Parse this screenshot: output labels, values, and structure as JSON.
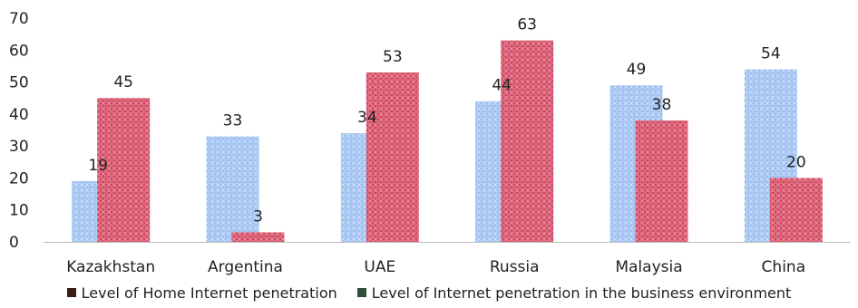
{
  "chart_data": {
    "type": "bar",
    "categories": [
      "Kazakhstan",
      "Argentina",
      "UAE",
      "Russia",
      "Malaysia",
      "China"
    ],
    "series": [
      {
        "name": "Level of Internet penetration in the business environment",
        "values": [
          19,
          33,
          34,
          44,
          49,
          54
        ],
        "color": "#8fb4ea"
      },
      {
        "name": "Level of Home Internet penetration",
        "values": [
          45,
          3,
          53,
          63,
          38,
          20
        ],
        "color": "#d9536b"
      }
    ],
    "legend_order": [
      1,
      0
    ],
    "legend_swatch_colors": [
      "#3a1c14",
      "#2f4f3c"
    ],
    "ylim": [
      0,
      70
    ],
    "yticks": [
      0,
      10,
      20,
      30,
      40,
      50,
      60,
      70
    ],
    "grid": false,
    "legend_position": "bottom",
    "xlabel": "",
    "ylabel": "",
    "title": ""
  }
}
